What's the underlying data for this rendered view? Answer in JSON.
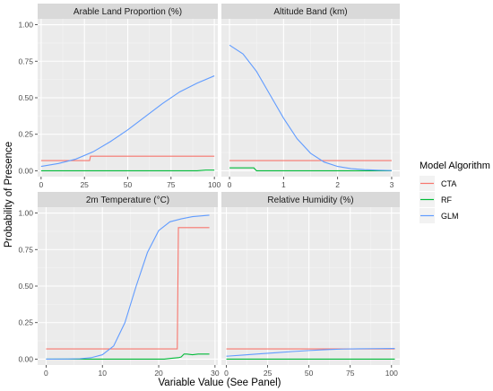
{
  "chart_data": {
    "type": "line",
    "ylabel": "Probability of Presence",
    "xlabel": "Variable Value (See Panel)",
    "legend": {
      "title": "Model Algorithm",
      "placement": "right",
      "entries": [
        {
          "name": "CTA",
          "color": "#F8766D"
        },
        {
          "name": "RF",
          "color": "#00BA38"
        },
        {
          "name": "GLM",
          "color": "#619CFF"
        }
      ]
    },
    "grid": true,
    "panels": [
      {
        "title": "Arable Land Proportion (%)",
        "xlim": [
          -2,
          102
        ],
        "ylim": [
          -0.04,
          1.04
        ],
        "xticks": [
          0,
          25,
          50,
          75,
          100
        ],
        "yticks": [
          0,
          0.25,
          0.5,
          0.75,
          1
        ],
        "yticklabels": [
          "0.00",
          "0.25",
          "0.50",
          "0.75",
          "1.00"
        ],
        "series": [
          {
            "name": "CTA",
            "x": [
              0,
              28,
              28.5,
              100
            ],
            "y": [
              0.07,
              0.07,
              0.1,
              0.1
            ]
          },
          {
            "name": "RF",
            "x": [
              0,
              90,
              95,
              100
            ],
            "y": [
              0.0,
              0.0,
              0.005,
              0.005
            ]
          },
          {
            "name": "GLM",
            "x": [
              0,
              10,
              20,
              30,
              40,
              50,
              60,
              70,
              80,
              90,
              100
            ],
            "y": [
              0.03,
              0.05,
              0.08,
              0.13,
              0.2,
              0.28,
              0.37,
              0.46,
              0.54,
              0.6,
              0.65
            ]
          }
        ]
      },
      {
        "title": "Altitude Band (km)",
        "xlim": [
          -0.15,
          3.15
        ],
        "ylim": [
          -0.04,
          1.04
        ],
        "xticks": [
          0,
          1,
          2,
          3
        ],
        "yticks": [
          0,
          0.25,
          0.5,
          0.75,
          1
        ],
        "yticklabels": [
          "0.00",
          "0.25",
          "0.50",
          "0.75",
          "1.00"
        ],
        "series": [
          {
            "name": "CTA",
            "x": [
              0,
              3
            ],
            "y": [
              0.07,
              0.07
            ]
          },
          {
            "name": "RF",
            "x": [
              0,
              0.45,
              0.5,
              3
            ],
            "y": [
              0.02,
              0.02,
              0.0,
              0.0
            ]
          },
          {
            "name": "GLM",
            "x": [
              0,
              0.25,
              0.5,
              0.75,
              1,
              1.25,
              1.5,
              1.75,
              2,
              2.25,
              2.5,
              2.75,
              3
            ],
            "y": [
              0.86,
              0.8,
              0.68,
              0.52,
              0.36,
              0.22,
              0.12,
              0.06,
              0.03,
              0.015,
              0.008,
              0.004,
              0.002
            ]
          }
        ]
      },
      {
        "title": "2m Temperature (°C)",
        "xlim": [
          -1.5,
          30.5
        ],
        "ylim": [
          -0.04,
          1.04
        ],
        "xticks": [
          0,
          10,
          20,
          30
        ],
        "yticks": [
          0,
          0.25,
          0.5,
          0.75,
          1
        ],
        "yticklabels": [
          "0.00",
          "0.25",
          "0.50",
          "0.75",
          "1.00"
        ],
        "series": [
          {
            "name": "CTA",
            "x": [
              0,
              23.3,
              23.5,
              29
            ],
            "y": [
              0.07,
              0.07,
              0.9,
              0.9
            ]
          },
          {
            "name": "RF",
            "x": [
              0,
              21,
              22,
              23.5,
              24,
              24.5,
              25,
              26,
              27,
              28,
              29
            ],
            "y": [
              0.0,
              0.0,
              0.005,
              0.01,
              0.015,
              0.035,
              0.035,
              0.03,
              0.035,
              0.035,
              0.035
            ]
          },
          {
            "name": "GLM",
            "x": [
              0,
              4,
              6,
              8,
              10,
              12,
              14,
              16,
              18,
              20,
              22,
              24,
              26,
              29
            ],
            "y": [
              0.0,
              0.001,
              0.003,
              0.01,
              0.03,
              0.09,
              0.25,
              0.5,
              0.73,
              0.88,
              0.94,
              0.96,
              0.975,
              0.985
            ]
          }
        ]
      },
      {
        "title": "Relative Humidity (%)",
        "xlim": [
          -3,
          105
        ],
        "ylim": [
          -0.04,
          1.04
        ],
        "xticks": [
          0,
          25,
          50,
          75,
          100
        ],
        "yticks": [
          0,
          0.25,
          0.5,
          0.75,
          1
        ],
        "yticklabels": [
          "0.00",
          "0.25",
          "0.50",
          "0.75",
          "1.00"
        ],
        "series": [
          {
            "name": "CTA",
            "x": [
              0,
              102
            ],
            "y": [
              0.07,
              0.07
            ]
          },
          {
            "name": "RF",
            "x": [
              0,
              102
            ],
            "y": [
              0.0,
              0.0
            ]
          },
          {
            "name": "GLM",
            "x": [
              0,
              10,
              20,
              30,
              40,
              50,
              60,
              70,
              80,
              90,
              102
            ],
            "y": [
              0.02,
              0.028,
              0.036,
              0.044,
              0.052,
              0.059,
              0.065,
              0.069,
              0.071,
              0.072,
              0.073
            ]
          }
        ]
      }
    ]
  }
}
